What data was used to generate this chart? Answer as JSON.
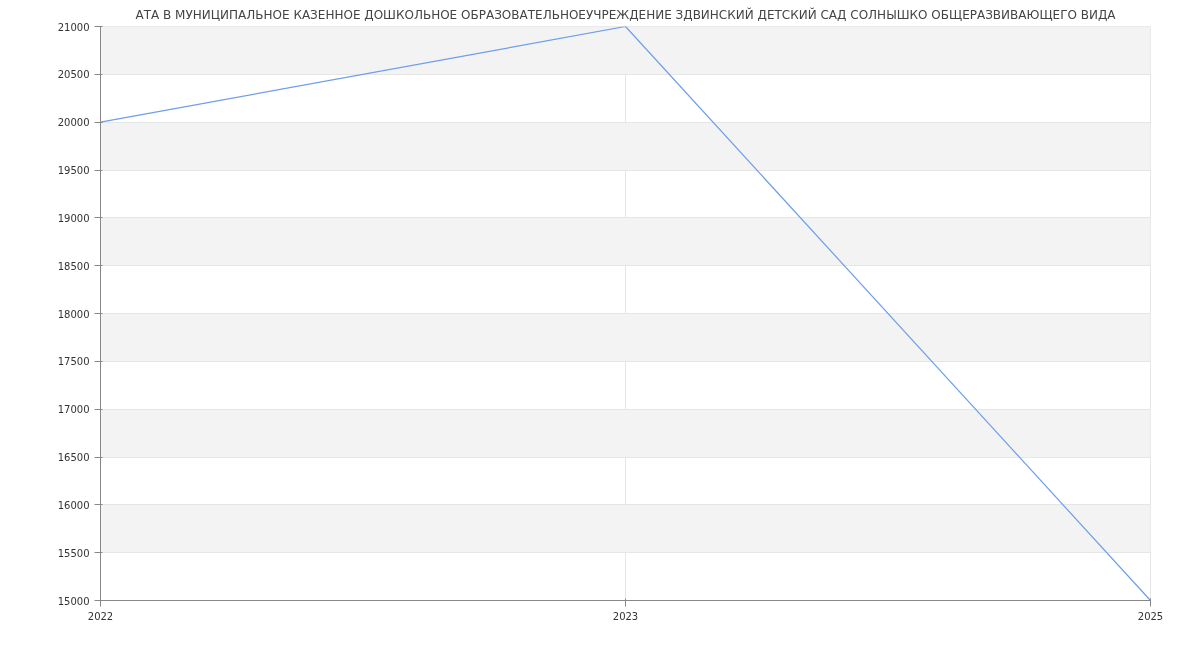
{
  "chart_data": {
    "type": "line",
    "title": "АТА В МУНИЦИПАЛЬНОЕ КАЗЕННОЕ ДОШКОЛЬНОЕ ОБРАЗОВАТЕЛЬНОЕУЧРЕЖДЕНИЕ ЗДВИНСКИЙ ДЕТСКИЙ САД СОЛНЫШКО ОБЩЕРАЗВИВАЮЩЕГО ВИДА",
    "categories": [
      "2022",
      "2023",
      "2025"
    ],
    "series": [
      {
        "color": "#6d9eeb",
        "values": [
          20000,
          21000,
          15000
        ]
      }
    ],
    "ylim": [
      15000,
      21000
    ],
    "yticks": [
      15000,
      15500,
      16000,
      16500,
      17000,
      17500,
      18000,
      18500,
      19000,
      19500,
      20000,
      20500,
      21000
    ],
    "grid": true,
    "marker": "none",
    "line_style": "solid"
  }
}
